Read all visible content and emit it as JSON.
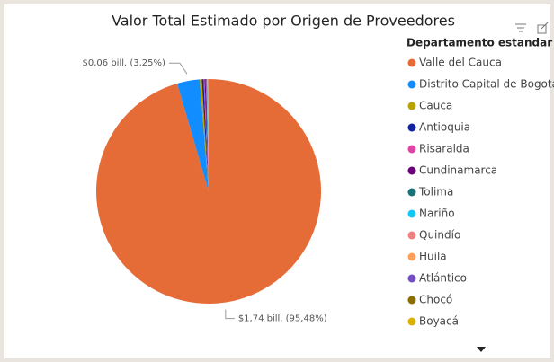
{
  "chart_data": {
    "type": "pie",
    "title": "Valor Total Estimado por Origen de Proveedores",
    "legend_title": "Departamento estandar",
    "categories": [
      "Valle del Cauca",
      "Distrito Capital de Bogotá",
      "Cauca",
      "Antioquia",
      "Risaralda",
      "Cundinamarca",
      "Tolima",
      "Nariño",
      "Quindío",
      "Huila",
      "Atlántico",
      "Chocó",
      "Boyacá"
    ],
    "values": [
      95.48,
      3.25,
      0.3,
      0.25,
      0.15,
      0.15,
      0.1,
      0.1,
      0.07,
      0.05,
      0.04,
      0.03,
      0.03
    ],
    "value_labels": [
      "$1,74 bill. (95,48%)",
      "$0,06 bill. (3,25%)",
      null,
      null,
      null,
      null,
      null,
      null,
      null,
      null,
      null,
      null,
      null
    ],
    "colors": [
      "#e66c37",
      "#118dff",
      "#b8a200",
      "#12239e",
      "#e044a7",
      "#6b007b",
      "#197278",
      "#15c6f4",
      "#f08080",
      "#fe9f5a",
      "#744ec2",
      "#8b6d00",
      "#d9b300"
    ],
    "legend": "right"
  }
}
